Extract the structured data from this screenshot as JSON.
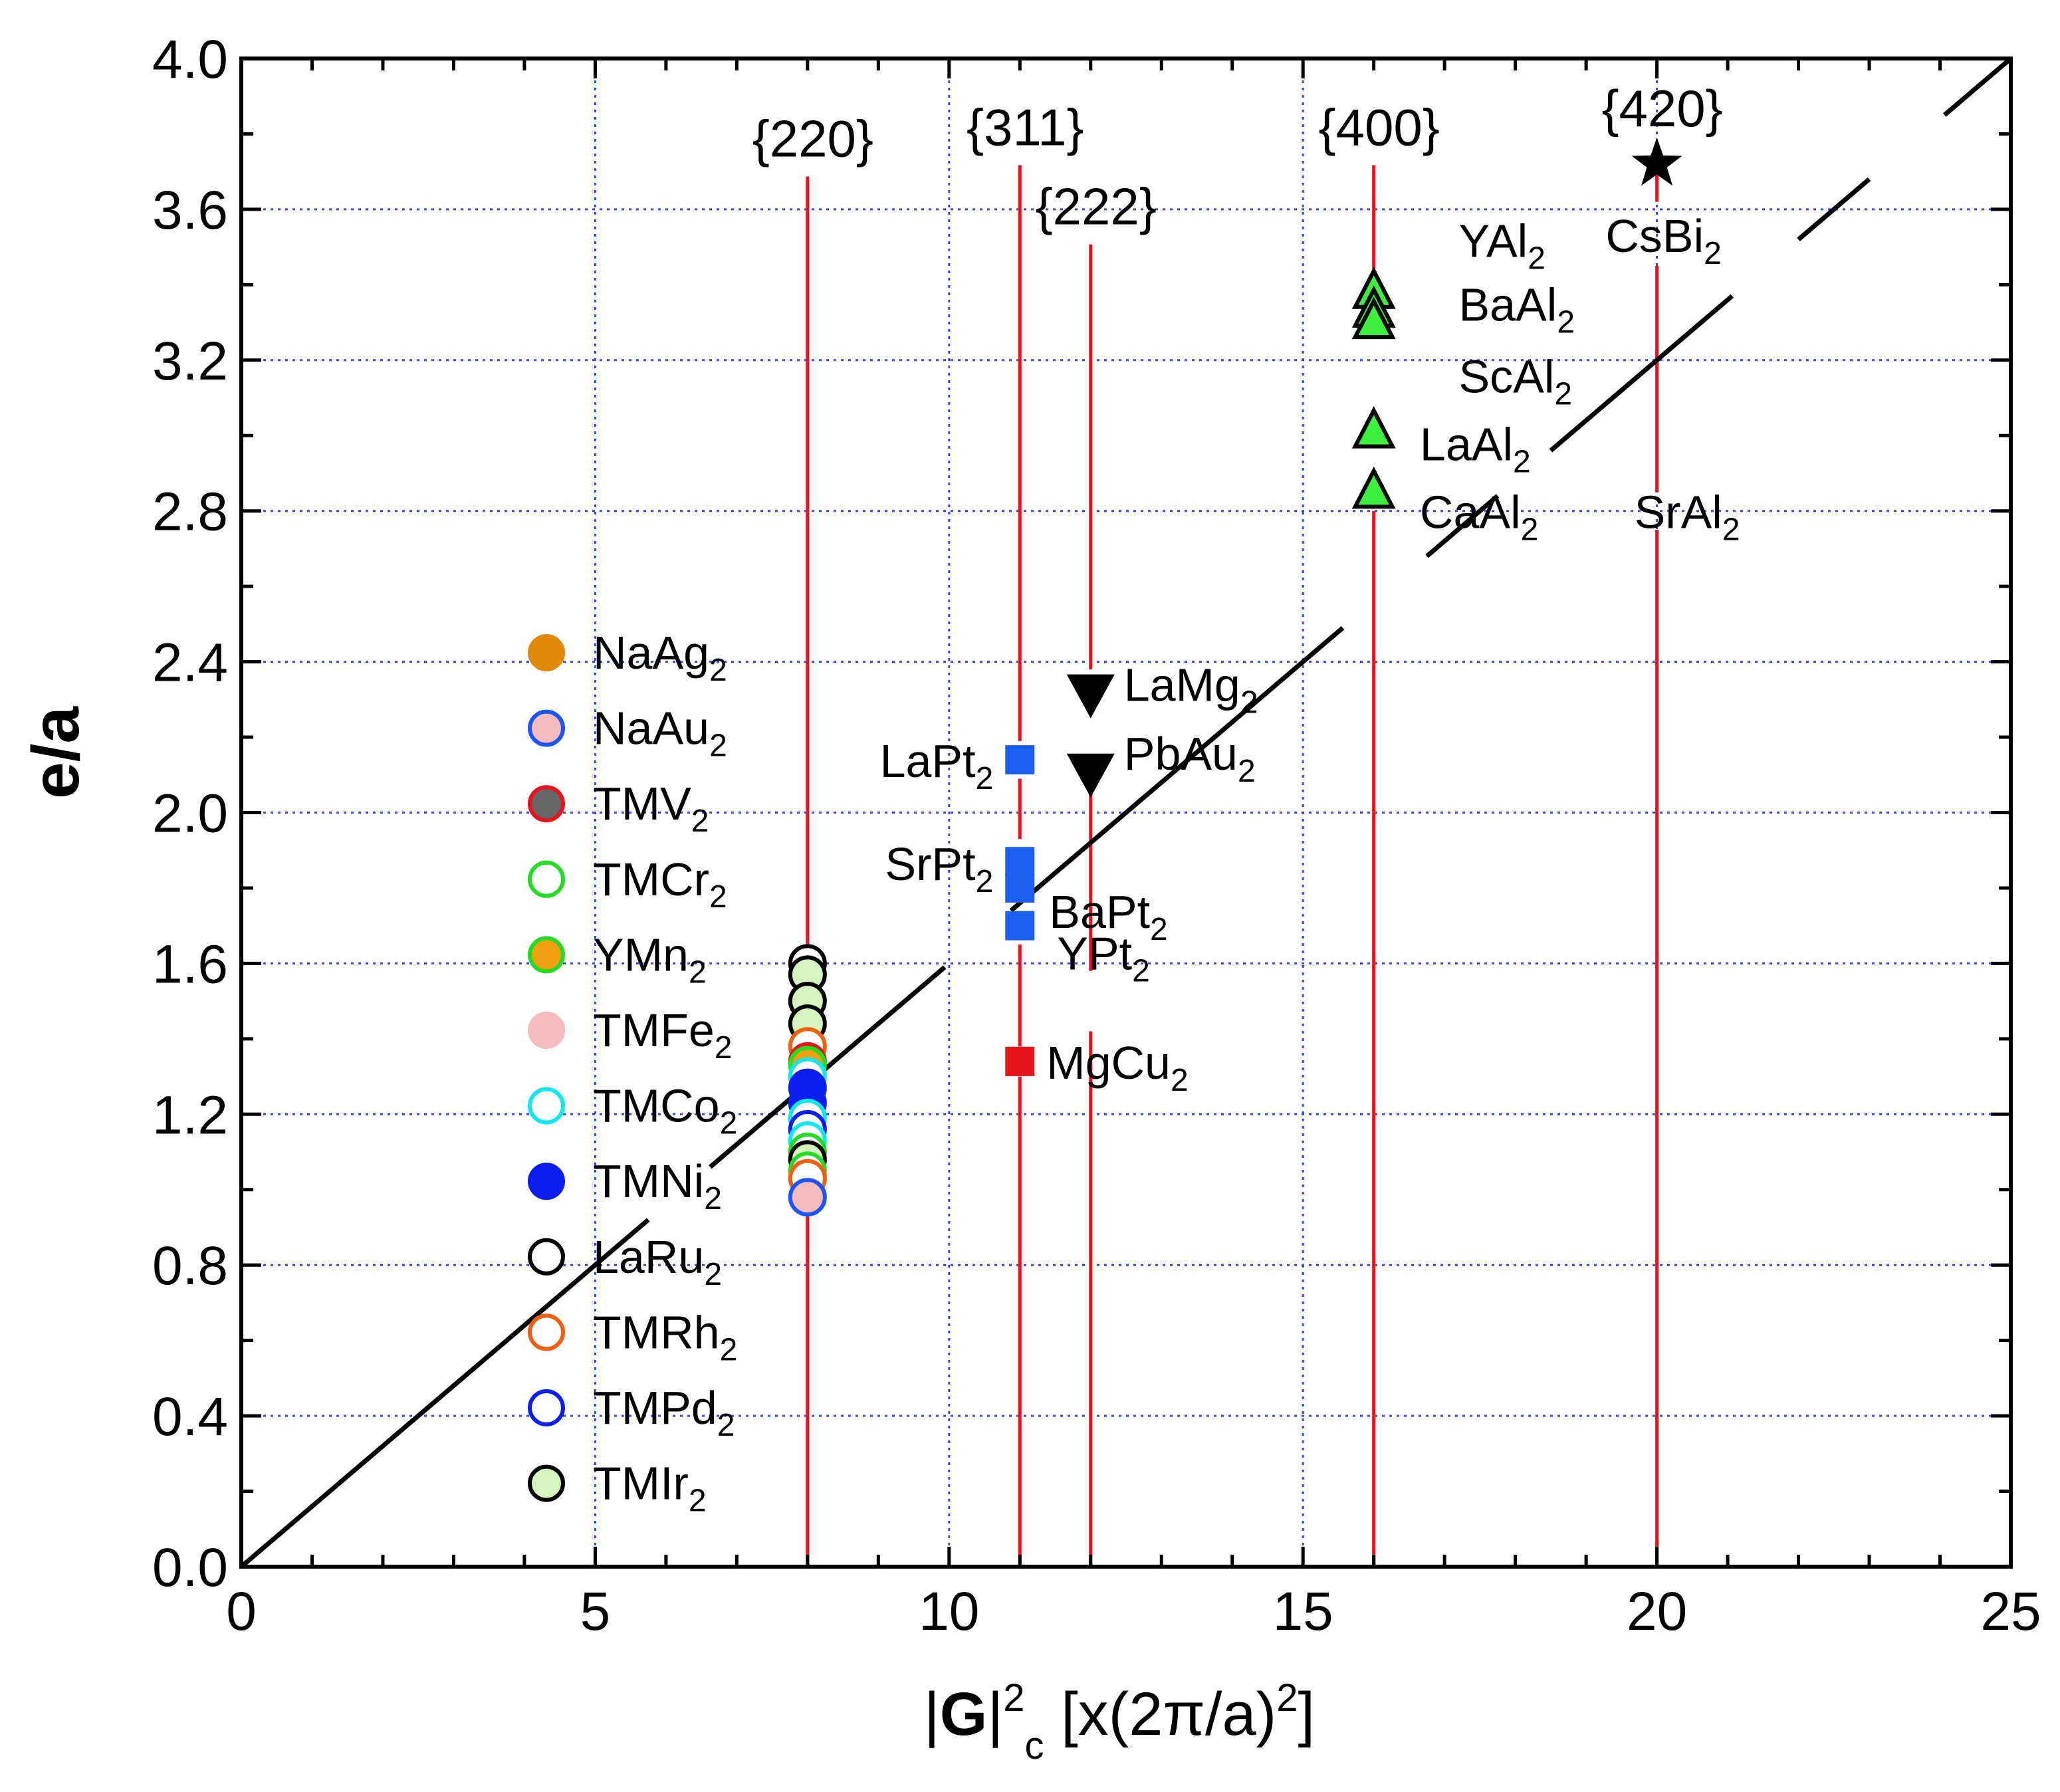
{
  "chart_data": {
    "type": "scatter",
    "xlabel": {
      "prefix": "|",
      "bold": "G",
      "mid": "|",
      "sup1": "2",
      "sub1": "c",
      "rest": " [x(2π/a)",
      "sup2": "2",
      "end": "]"
    },
    "ylabel": "e/a",
    "xlim": [
      0,
      25
    ],
    "ylim": [
      0,
      4.0
    ],
    "x_ticks": [
      "0",
      "5",
      "10",
      "15",
      "20",
      "25"
    ],
    "x_tick_values": [
      0,
      5,
      10,
      15,
      20,
      25
    ],
    "y_ticks": [
      "0.0",
      "0.4",
      "0.8",
      "1.2",
      "1.6",
      "2.0",
      "2.4",
      "2.8",
      "3.2",
      "3.6",
      "4.0"
    ],
    "y_tick_values": [
      0,
      0.4,
      0.8,
      1.2,
      1.6,
      2.0,
      2.4,
      2.8,
      3.2,
      3.6,
      4.0
    ],
    "gridlines_x": [
      5,
      10,
      15,
      20
    ],
    "gridlines_y": [
      0.4,
      0.8,
      1.2,
      1.6,
      2.0,
      2.4,
      2.8,
      3.2,
      3.6
    ],
    "diagonal_line": {
      "x": [
        0,
        25
      ],
      "y": [
        0,
        4.0
      ],
      "color": "#000000"
    },
    "plane_lines": [
      {
        "label": "{220}",
        "x": 8,
        "label_y": 3.74
      },
      {
        "label": "{311}",
        "x": 11,
        "label_y": 3.77
      },
      {
        "label": "{222}",
        "x": 12,
        "label_y": 3.56
      },
      {
        "label": "{400}",
        "x": 16,
        "label_y": 3.77
      },
      {
        "label": "{420}",
        "x": 20,
        "label_y": 3.82
      }
    ],
    "plane_line_color": "#e8141b",
    "legend": [
      {
        "name": "NaAg",
        "sub": "2",
        "fill": "#e08a0c",
        "stroke": "#e08a0c"
      },
      {
        "name": "NaAu",
        "sub": "2",
        "fill": "#f6bcbc",
        "stroke": "#1a55ff"
      },
      {
        "name": "TMV",
        "sub": "2",
        "fill": "#666666",
        "stroke": "#e8141b"
      },
      {
        "name": "TMCr",
        "sub": "2",
        "fill": "#ffffff",
        "stroke": "#22dd22"
      },
      {
        "name": "YMn",
        "sub": "2",
        "fill": "#f0a010",
        "stroke": "#22dd22"
      },
      {
        "name": "TMFe",
        "sub": "2",
        "fill": "#f6bcbc",
        "stroke": "#f6bcbc"
      },
      {
        "name": "TMCo",
        "sub": "2",
        "fill": "#ffffff",
        "stroke": "#12e6ee"
      },
      {
        "name": "TMNi",
        "sub": "2",
        "fill": "#0a1ef0",
        "stroke": "#0a1ef0"
      },
      {
        "name": "LaRu",
        "sub": "2",
        "fill": "#ffffff",
        "stroke": "#000000"
      },
      {
        "name": "TMRh",
        "sub": "2",
        "fill": "#ffffff",
        "stroke": "#f06010"
      },
      {
        "name": "TMPd",
        "sub": "2",
        "fill": "#ffffff",
        "stroke": "#0a1ef0"
      },
      {
        "name": "TMIr",
        "sub": "2",
        "fill": "#d4f5c0",
        "stroke": "#000000"
      }
    ],
    "circle_points": [
      {
        "x": 8,
        "y": 1.6,
        "fill": "#ffffff",
        "stroke": "#000000"
      },
      {
        "x": 8,
        "y": 1.57,
        "fill": "#d4f5c0",
        "stroke": "#000000"
      },
      {
        "x": 8,
        "y": 1.5,
        "fill": "#d4f5c0",
        "stroke": "#000000"
      },
      {
        "x": 8,
        "y": 1.44,
        "fill": "#d4f5c0",
        "stroke": "#000000"
      },
      {
        "x": 8,
        "y": 1.38,
        "fill": "#ffffff",
        "stroke": "#f06010"
      },
      {
        "x": 8,
        "y": 1.34,
        "fill": "#666666",
        "stroke": "#e8141b"
      },
      {
        "x": 8,
        "y": 1.33,
        "fill": "#f0a010",
        "stroke": "#22dd22"
      },
      {
        "x": 8,
        "y": 1.3,
        "fill": "#ffffff",
        "stroke": "#12e6ee"
      },
      {
        "x": 8,
        "y": 1.27,
        "fill": "#0a1ef0",
        "stroke": "#0a1ef0"
      },
      {
        "x": 8,
        "y": 1.23,
        "fill": "#0a1ef0",
        "stroke": "#0a1ef0"
      },
      {
        "x": 8,
        "y": 1.19,
        "fill": "#ffffff",
        "stroke": "#12e6ee"
      },
      {
        "x": 8,
        "y": 1.16,
        "fill": "#ffffff",
        "stroke": "#0a1ef0"
      },
      {
        "x": 8,
        "y": 1.13,
        "fill": "#ffffff",
        "stroke": "#12e6ee"
      },
      {
        "x": 8,
        "y": 1.1,
        "fill": "#ffffff",
        "stroke": "#22dd22"
      },
      {
        "x": 8,
        "y": 1.08,
        "fill": "#d4f5c0",
        "stroke": "#000000"
      },
      {
        "x": 8,
        "y": 1.05,
        "fill": "#ffffff",
        "stroke": "#22dd22"
      },
      {
        "x": 8,
        "y": 1.03,
        "fill": "#ffffff",
        "stroke": "#f06010"
      },
      {
        "x": 8,
        "y": 0.98,
        "fill": "#f6bcbc",
        "stroke": "#1a55ff"
      }
    ],
    "square_points": [
      {
        "label": "LaPt",
        "sub": "2",
        "x": 11,
        "y": 2.14,
        "color": "#1a5fef",
        "anchor": "end"
      },
      {
        "label": "SrPt",
        "sub": "2",
        "x": 11,
        "y": 1.87,
        "color": "#1a5fef",
        "anchor": "end"
      },
      {
        "label": "BaPt",
        "sub": "2",
        "x": 11,
        "y": 1.8,
        "color": "#1a5fef",
        "anchor": "start"
      },
      {
        "label": "YPt",
        "sub": "2",
        "x": 11,
        "y": 1.7,
        "color": "#1a5fef",
        "anchor": "start"
      },
      {
        "label": "MgCu",
        "sub": "2",
        "x": 11,
        "y": 1.34,
        "color": "#e8141b",
        "anchor": "start"
      }
    ],
    "down_triangle_points": [
      {
        "label": "LaMg",
        "sub": "2",
        "x": 12,
        "y": 2.31
      },
      {
        "label": "PbAu",
        "sub": "2",
        "x": 12,
        "y": 2.1
      }
    ],
    "up_triangle_points": [
      {
        "label": "YAl",
        "sub": "2",
        "x": 16,
        "y": 3.38
      },
      {
        "label": "BaAl",
        "sub": "2",
        "x": 16,
        "y": 3.33
      },
      {
        "label": "ScAl",
        "sub": "2",
        "x": 16,
        "y": 3.3
      },
      {
        "label": "LaAl",
        "sub": "2",
        "x": 16,
        "y": 3.01
      },
      {
        "label": "CaAl",
        "sub": "2",
        "x": 16,
        "y": 2.85
      }
    ],
    "up_triangle_labels": [
      {
        "label": "YAl",
        "sub": "2",
        "x": 17.2,
        "y": 3.52
      },
      {
        "label": "BaAl",
        "sub": "2",
        "x": 17.2,
        "y": 3.35
      },
      {
        "label": "ScAl",
        "sub": "2",
        "x": 17.2,
        "y": 3.16
      },
      {
        "label": "LaAl",
        "sub": "2",
        "x": 16.65,
        "y": 2.98
      },
      {
        "label": "CaAl",
        "sub": "2",
        "x": 16.65,
        "y": 2.8
      }
    ],
    "star_points": [
      {
        "label": "CsBi",
        "sub": "2",
        "x": 20,
        "y": 3.72
      }
    ],
    "text_annotations": [
      {
        "label": "SrAl",
        "sub": "2",
        "x": 20,
        "y": 2.8
      }
    ]
  }
}
